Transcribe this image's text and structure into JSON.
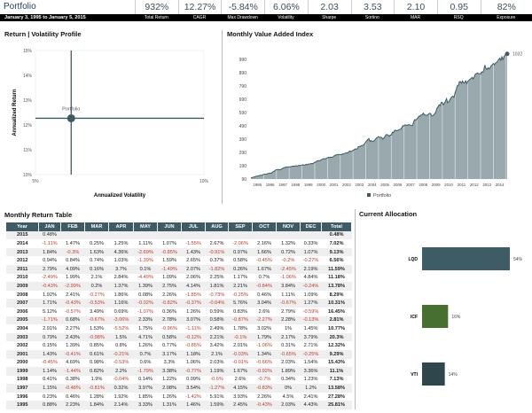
{
  "header": {
    "title": "Portfolio",
    "date_range": "January 3, 1995 to January 5, 2015",
    "stats": [
      {
        "value": "932%",
        "label": "Total Return"
      },
      {
        "value": "12.27%",
        "label": "CAGR"
      },
      {
        "value": "-5.84%",
        "label": "Max Drawdown"
      },
      {
        "value": "6.06%",
        "label": "Volatility"
      },
      {
        "value": "2.03",
        "label": "Sharpe"
      },
      {
        "value": "3.53",
        "label": "Sortino"
      },
      {
        "value": "2.10",
        "label": "MAR"
      },
      {
        "value": "0.95",
        "label": "RSQ"
      },
      {
        "value": "82%",
        "label": "Exposure"
      }
    ]
  },
  "chart_data": [
    {
      "type": "scatter",
      "title": "Return | Volatility Profile",
      "xlabel": "Annualized Volatility",
      "ylabel": "Annualized Return",
      "xlim": [
        5,
        10
      ],
      "ylim": [
        10,
        15
      ],
      "xticks": [
        "5%",
        "10%"
      ],
      "yticks": [
        "10%",
        "11%",
        "12%",
        "13%",
        "14%",
        "15%"
      ],
      "points": [
        {
          "label": "Portfolio",
          "x": 6.06,
          "y": 12.27
        }
      ],
      "color": "#3d5a63"
    },
    {
      "type": "area",
      "title": "Monthly Value Added Index",
      "ylim": [
        90,
        1032
      ],
      "yticks": [
        "90",
        "190",
        "290",
        "390",
        "490",
        "590",
        "690",
        "790",
        "890",
        "990"
      ],
      "xticks": [
        "1995",
        "1996",
        "1997",
        "1998",
        "1999",
        "2000",
        "2001",
        "2002",
        "2003",
        "2004",
        "2005",
        "2006",
        "2007",
        "2008",
        "2009",
        "2010",
        "2011",
        "2012",
        "2013",
        "2014"
      ],
      "series": [
        {
          "name": "Portfolio",
          "year_end_values": [
            125.8,
            160.1,
            181.9,
            194.8,
            216.5,
            249.9,
            273.1,
            306.7,
            369.0,
            408.7,
            420.2,
            489.4,
            539.8,
            584.6,
            665.1,
            739.5,
            825.2,
            879.3,
            959.6,
            1027.0
          ],
          "last_value": "1032"
        }
      ],
      "legend": "bottom",
      "grid": true,
      "fill": "#9aa9ad",
      "line": "#3d5a63"
    },
    {
      "type": "bar",
      "title": "Current Allocation",
      "categories": [
        "LQD",
        "ICF",
        "VTI"
      ],
      "values": [
        54,
        16,
        14
      ],
      "labels": [
        "54%",
        "16%",
        "14%"
      ],
      "colors": [
        "#3e5c66",
        "#476f30",
        "#2f464c"
      ]
    }
  ],
  "table": {
    "title": "Monthly Return Table",
    "columns": [
      "Year",
      "JAN",
      "FEB",
      "MAR",
      "APR",
      "MAY",
      "JUN",
      "JUL",
      "AUG",
      "SEP",
      "OCT",
      "NOV",
      "DEC",
      "Total"
    ],
    "rows": [
      [
        "2015",
        "0.48%",
        "",
        "",
        "",
        "",
        "",
        "",
        "",
        "",
        "",
        "",
        "",
        "0.48%"
      ],
      [
        "2014",
        "-1.11%",
        "1.47%",
        "0.25%",
        "1.25%",
        "1.11%",
        "1.07%",
        "-1.55%",
        "2.67%",
        "-2.06%",
        "2.16%",
        "1.32%",
        "0.33%",
        "7.02%"
      ],
      [
        "2013",
        "1.84%",
        "-0.3%",
        "1.63%",
        "4.36%",
        "-2.69%",
        "-0.85%",
        "1.43%",
        "-0.91%",
        "0.97%",
        "1.66%",
        "0.72%",
        "1.07%",
        "9.13%"
      ],
      [
        "2012",
        "0.94%",
        "0.84%",
        "0.74%",
        "1.03%",
        "-1.39%",
        "1.59%",
        "2.65%",
        "0.37%",
        "0.58%",
        "-0.45%",
        "-0.2%",
        "-0.27%",
        "6.56%"
      ],
      [
        "2011",
        "2.79%",
        "4.09%",
        "0.16%",
        "3.7%",
        "0.1%",
        "-1.49%",
        "2.07%",
        "-1.82%",
        "0.26%",
        "1.67%",
        "-2.45%",
        "2.19%",
        "11.59%"
      ],
      [
        "2010",
        "-2.49%",
        "1.99%",
        "2.1%",
        "2.84%",
        "-4.49%",
        "1.09%",
        "2.06%",
        "2.25%",
        "1.17%",
        "0.7%",
        "-1.06%",
        "4.84%",
        "11.18%"
      ],
      [
        "2009",
        "-0.43%",
        "-2.99%",
        "0.2%",
        "1.37%",
        "1.39%",
        "2.75%",
        "4.14%",
        "1.81%",
        "2.21%",
        "-0.84%",
        "3.84%",
        "-0.24%",
        "13.78%"
      ],
      [
        "2008",
        "1.92%",
        "2.41%",
        "-0.27%",
        "1.86%",
        "0.08%",
        "2.26%",
        "-1.85%",
        "-0.73%",
        "-0.25%",
        "0.46%",
        "1.11%",
        "1.09%",
        "8.29%"
      ],
      [
        "2007",
        "1.71%",
        "-0.43%",
        "-0.53%",
        "1.16%",
        "-0.02%",
        "-0.82%",
        "-0.37%",
        "-0.04%",
        "5.76%",
        "3.04%",
        "-0.67%",
        "1.27%",
        "10.31%"
      ],
      [
        "2006",
        "5.12%",
        "-0.57%",
        "3.49%",
        "0.69%",
        "-1.07%",
        "0.36%",
        "1.26%",
        "0.59%",
        "0.83%",
        "2.6%",
        "2.79%",
        "-0.59%",
        "16.45%"
      ],
      [
        "2005",
        "-1.71%",
        "0.68%",
        "-0.67%",
        "-3.06%",
        "2.33%",
        "2.78%",
        "3.07%",
        "0.58%",
        "-0.87%",
        "-2.27%",
        "2.28%",
        "-0.13%",
        "2.81%"
      ],
      [
        "2004",
        "2.91%",
        "2.27%",
        "1.53%",
        "-5.52%",
        "1.75%",
        "-0.96%",
        "-1.11%",
        "2.49%",
        "1.78%",
        "3.02%",
        "1%",
        "1.45%",
        "10.77%"
      ],
      [
        "2003",
        "0.79%",
        "2.43%",
        "-0.98%",
        "1.5%",
        "4.71%",
        "0.58%",
        "-0.12%",
        "2.21%",
        "-0.1%",
        "1.79%",
        "2.17%",
        "3.79%",
        "20.3%"
      ],
      [
        "2002",
        "0.15%",
        "1.39%",
        "0.85%",
        "0.8%",
        "1.26%",
        "0.77%",
        "-0.85%",
        "3.42%",
        "2.01%",
        "-1.06%",
        "0.31%",
        "2.71%",
        "12.32%"
      ],
      [
        "2001",
        "1.43%",
        "-0.41%",
        "0.61%",
        "-0.21%",
        "0.7%",
        "3.17%",
        "1.18%",
        "2.1%",
        "-0.03%",
        "1.34%",
        "-0.65%",
        "-0.25%",
        "9.29%"
      ],
      [
        "2000",
        "-0.45%",
        "4.69%",
        "0.98%",
        "-0.53%",
        "0.6%",
        "3.3%",
        "1.06%",
        "2.03%",
        "-0.01%",
        "-0.66%",
        "2.03%",
        "1.54%",
        "15.43%"
      ],
      [
        "1999",
        "1.14%",
        "-1.44%",
        "0.82%",
        "2.2%",
        "-1.79%",
        "3.38%",
        "-0.77%",
        "1.19%",
        "1.67%",
        "-0.92%",
        "1.89%",
        "3.36%",
        "11.1%"
      ],
      [
        "1998",
        "0.41%",
        "0.38%",
        "1.9%",
        "-0.04%",
        "0.14%",
        "1.22%",
        "0.09%",
        "-0.6%",
        "2.6%",
        "-0.7%",
        "0.34%",
        "1.23%",
        "7.13%"
      ],
      [
        "1997",
        "1.15%",
        "-0.48%",
        "-0.81%",
        "0.32%",
        "3.97%",
        "2.08%",
        "3.54%",
        "-1.27%",
        "4.15%",
        "-0.83%",
        "0%",
        "1.2%",
        "13.58%"
      ],
      [
        "1996",
        "0.23%",
        "0.46%",
        "1.28%",
        "1.92%",
        "1.85%",
        "1.26%",
        "-1.42%",
        "5.91%",
        "3.93%",
        "2.26%",
        "4.5%",
        "2.41%",
        "27.28%"
      ],
      [
        "1995",
        "0.88%",
        "2.23%",
        "1.84%",
        "2.14%",
        "3.33%",
        "1.31%",
        "1.46%",
        "1.59%",
        "2.45%",
        "-0.43%",
        "2.03%",
        "4.43%",
        "25.81%"
      ]
    ]
  }
}
